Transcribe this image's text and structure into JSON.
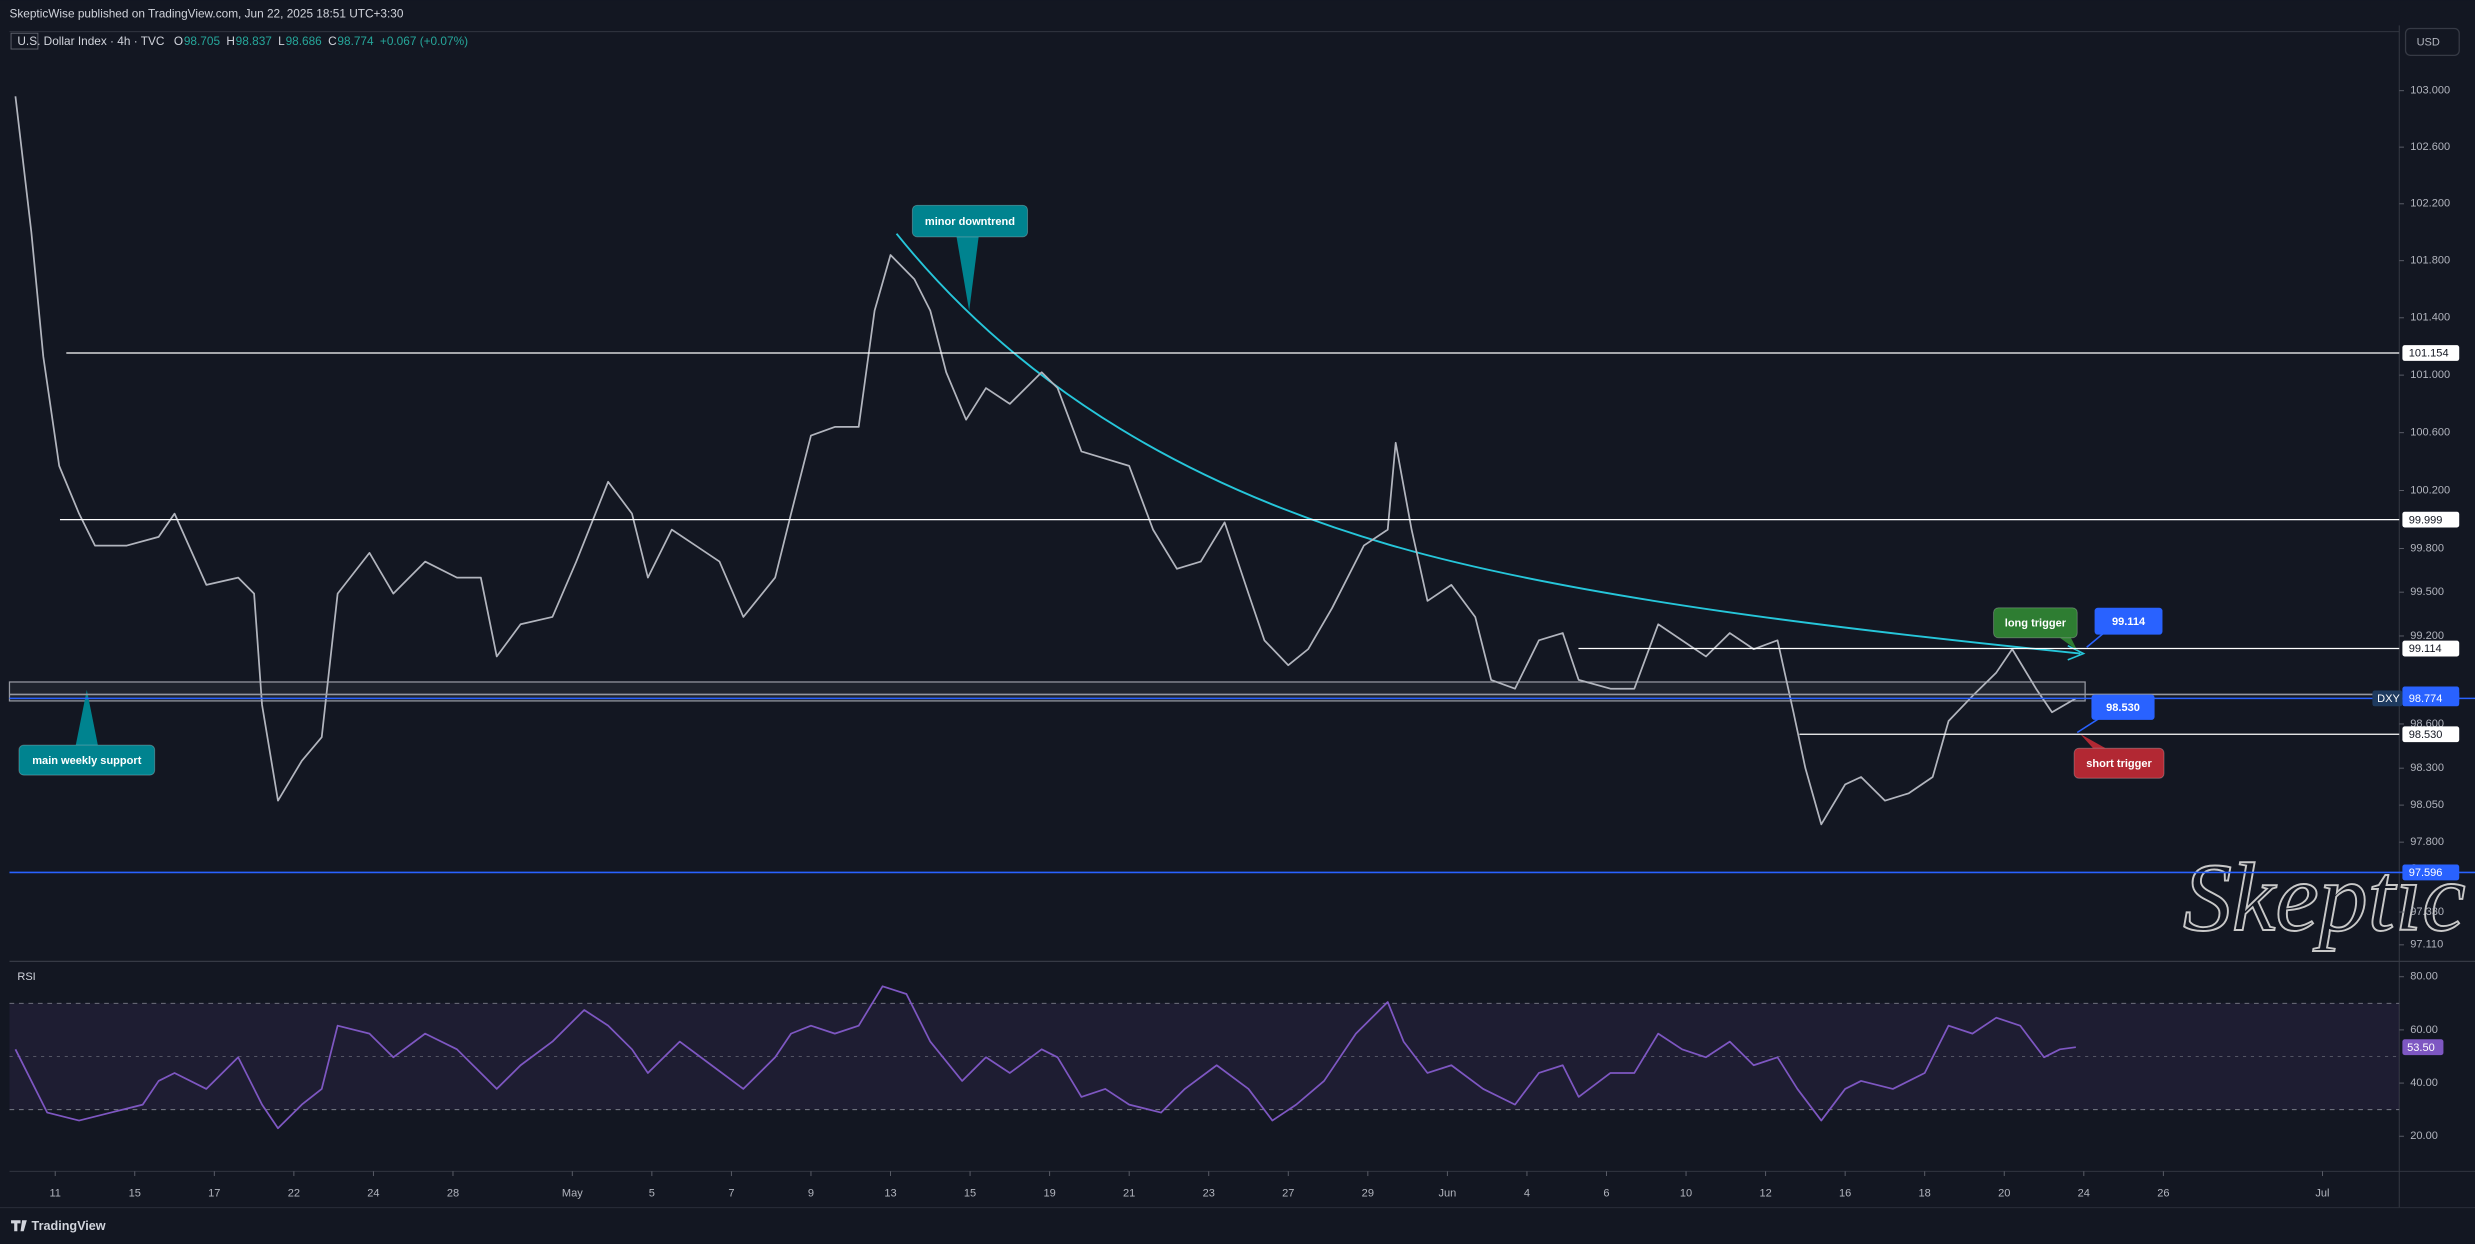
{
  "header": {
    "publisher": "SkepticWise published on TradingView.com, Jun 22, 2025 18:51 UTC+3:30",
    "symbol": "U.S. Dollar Index · 4h · TVC",
    "ohlc": [
      {
        "key": "O",
        "value": 98.705
      },
      {
        "key": "H",
        "value": 98.837
      },
      {
        "key": "L",
        "value": 98.686
      },
      {
        "key": "C",
        "value": 98.774
      }
    ],
    "change": "+0.067 (+0.07%)",
    "currency": "USD",
    "footer": "TradingView"
  },
  "signature": "Skeptic",
  "chart_data": [
    {
      "type": "line",
      "log_scale": true,
      "grid": false,
      "x": [
        -1.0,
        -0.6,
        -0.3,
        0.1,
        0.6,
        1.0,
        1.8,
        2.6,
        3.0,
        3.8,
        4.6,
        5.0,
        5.2,
        5.6,
        6.2,
        6.7,
        7.1,
        7.9,
        8.5,
        9.3,
        10.1,
        10.7,
        11.1,
        11.7,
        12.5,
        13.1,
        13.9,
        14.5,
        14.9,
        15.5,
        16.1,
        16.7,
        17.3,
        18.1,
        18.5,
        19.0,
        19.6,
        20.2,
        20.6,
        21.0,
        21.6,
        22.0,
        22.4,
        22.9,
        23.4,
        24.0,
        24.8,
        25.2,
        25.8,
        26.4,
        27.0,
        27.6,
        28.2,
        28.8,
        29.4,
        30.0,
        30.4,
        31.0,
        31.5,
        32.1,
        32.9,
        33.5,
        33.7,
        34.1,
        34.5,
        35.1,
        35.7,
        36.1,
        36.7,
        37.3,
        37.9,
        38.3,
        39.1,
        39.7,
        40.3,
        40.9,
        41.5,
        42.1,
        42.7,
        43.3,
        43.7,
        44.0,
        44.4,
        45.0,
        45.4,
        46.0,
        46.6,
        47.2,
        47.6,
        48.2,
        48.8,
        49.2,
        49.8,
        50.2,
        50.8
      ],
      "series": [
        {
          "color": "#b2b5be",
          "values": [
            102.96,
            102.0,
            101.13,
            100.37,
            100.04,
            99.82,
            99.82,
            99.88,
            100.04,
            99.55,
            99.6,
            99.49,
            98.73,
            98.08,
            98.35,
            98.51,
            99.49,
            99.77,
            99.49,
            99.71,
            99.6,
            99.6,
            99.06,
            99.28,
            99.33,
            99.71,
            100.26,
            100.04,
            99.6,
            99.93,
            99.82,
            99.71,
            99.33,
            99.6,
            100.04,
            100.58,
            100.64,
            100.64,
            101.45,
            101.84,
            101.67,
            101.45,
            101.02,
            100.69,
            100.91,
            100.8,
            101.02,
            100.91,
            100.47,
            100.42,
            100.37,
            99.93,
            99.66,
            99.71,
            99.98,
            99.49,
            99.17,
            99.0,
            99.11,
            99.39,
            99.82,
            99.93,
            100.53,
            99.93,
            99.44,
            99.55,
            99.33,
            98.9,
            98.84,
            99.17,
            99.22,
            98.9,
            98.84,
            98.84,
            99.28,
            99.17,
            99.06,
            99.22,
            99.11,
            99.17,
            98.68,
            98.3,
            97.92,
            98.19,
            98.24,
            98.08,
            98.13,
            98.24,
            98.62,
            98.79,
            98.95,
            99.11,
            98.84,
            98.68,
            98.774
          ]
        }
      ],
      "xlim": [
        -1.15,
        58.93
      ],
      "ylim": [
        97.01,
        103.42
      ],
      "yticks": [
        {
          "value": 103,
          "label": "103.000"
        },
        {
          "value": 102.6,
          "label": "102.600"
        },
        {
          "value": 102.2,
          "label": "102.200"
        },
        {
          "value": 101.8,
          "label": "101.800"
        },
        {
          "value": 101.4,
          "label": "101.400"
        },
        {
          "value": 101,
          "label": "101.000"
        },
        {
          "value": 100.6,
          "label": "100.600"
        },
        {
          "value": 100.2,
          "label": "100.200"
        },
        {
          "value": 99.8,
          "label": "99.800"
        },
        {
          "value": 99.5,
          "label": "99.500"
        },
        {
          "value": 99.2,
          "label": "99.200"
        },
        {
          "value": 98.6,
          "label": "98.600"
        },
        {
          "value": 98.3,
          "label": "98.300"
        },
        {
          "value": 98.05,
          "label": "98.050"
        },
        {
          "value": 97.8,
          "label": "97.800"
        },
        {
          "value": 97.33,
          "label": "97.330"
        },
        {
          "value": 97.11,
          "label": "97.110"
        }
      ],
      "levels": [
        {
          "value": 101.154,
          "label": "101.154",
          "color": "#ffffff"
        },
        {
          "value": 99.999,
          "label": "99.999",
          "color": "#ffffff"
        },
        {
          "value": 99.114,
          "label": "99.114",
          "color": "#ffffff"
        },
        {
          "value": 98.801,
          "label": "98.801",
          "color": "#2962ff"
        },
        {
          "value": 98.774,
          "label": "98.774",
          "color": "#2962ff",
          "tag": "DXY"
        },
        {
          "value": 98.53,
          "label": "98.530",
          "color": "#ffffff"
        },
        {
          "value": 97.596,
          "label": "97.596",
          "color": "#2962ff"
        }
      ],
      "annotations": [
        "minor downtrend",
        "main weekly support",
        "long trigger",
        "short trigger"
      ]
    },
    {
      "type": "line",
      "title": "RSI",
      "x": [
        -1.0,
        -0.2,
        0.6,
        1.4,
        2.2,
        2.6,
        3.0,
        3.8,
        4.6,
        5.2,
        5.6,
        6.2,
        6.7,
        7.1,
        7.9,
        8.5,
        9.3,
        10.1,
        10.7,
        11.1,
        11.7,
        12.5,
        13.3,
        13.9,
        14.5,
        14.9,
        15.7,
        16.5,
        17.3,
        18.1,
        18.5,
        19.0,
        19.6,
        20.2,
        20.8,
        21.4,
        22.0,
        22.8,
        23.4,
        24.0,
        24.8,
        25.2,
        25.8,
        26.4,
        27.0,
        27.8,
        28.4,
        29.2,
        30.0,
        30.6,
        31.2,
        31.9,
        32.7,
        33.5,
        33.9,
        34.5,
        35.1,
        35.9,
        36.7,
        37.3,
        37.9,
        38.3,
        39.1,
        39.7,
        40.3,
        40.9,
        41.5,
        42.1,
        42.7,
        43.3,
        43.8,
        44.4,
        45.0,
        45.4,
        46.2,
        47.0,
        47.6,
        48.2,
        48.8,
        49.4,
        50.0,
        50.4,
        50.8
      ],
      "series": [
        {
          "color": "#7e57c2",
          "values": [
            52.7,
            28.9,
            25.9,
            28.9,
            31.9,
            40.8,
            43.8,
            37.8,
            49.7,
            31.9,
            23.0,
            31.9,
            37.8,
            61.6,
            58.6,
            49.7,
            58.6,
            52.7,
            43.8,
            37.8,
            46.7,
            55.6,
            67.5,
            61.6,
            52.7,
            43.8,
            55.6,
            46.7,
            37.8,
            49.7,
            58.6,
            61.6,
            58.6,
            61.6,
            76.4,
            73.5,
            55.6,
            40.8,
            49.7,
            43.8,
            52.7,
            49.7,
            34.8,
            37.8,
            31.9,
            28.9,
            37.8,
            46.7,
            37.8,
            25.9,
            31.9,
            40.8,
            58.6,
            70.5,
            55.6,
            43.8,
            46.7,
            37.8,
            31.9,
            43.8,
            46.7,
            34.8,
            43.8,
            43.8,
            58.6,
            52.7,
            49.7,
            55.6,
            46.7,
            49.7,
            37.8,
            25.9,
            37.8,
            40.8,
            37.8,
            43.8,
            61.6,
            58.6,
            64.6,
            61.6,
            49.7,
            52.7,
            53.5
          ]
        }
      ],
      "xlim": [
        -1.15,
        58.93
      ],
      "ylim": [
        8,
        84
      ],
      "yticks": [
        {
          "value": 80,
          "label": "80.00"
        },
        {
          "value": 60,
          "label": "60.00"
        },
        {
          "value": 40,
          "label": "40.00"
        },
        {
          "value": 20,
          "label": "20.00"
        }
      ],
      "bands": [
        30,
        70
      ],
      "midline": 50,
      "last_label": {
        "value": 53.5,
        "label": "53.50"
      },
      "xticks": [
        {
          "value": 0,
          "label": "11"
        },
        {
          "value": 2,
          "label": "15"
        },
        {
          "value": 4,
          "label": "17"
        },
        {
          "value": 6,
          "label": "22"
        },
        {
          "value": 8,
          "label": "24"
        },
        {
          "value": 10,
          "label": "28"
        },
        {
          "value": 13,
          "label": "May"
        },
        {
          "value": 15,
          "label": "5"
        },
        {
          "value": 17,
          "label": "7"
        },
        {
          "value": 19,
          "label": "9"
        },
        {
          "value": 21,
          "label": "13"
        },
        {
          "value": 23,
          "label": "15"
        },
        {
          "value": 25,
          "label": "19"
        },
        {
          "value": 27,
          "label": "21"
        },
        {
          "value": 29,
          "label": "23"
        },
        {
          "value": 31,
          "label": "27"
        },
        {
          "value": 33,
          "label": "29"
        },
        {
          "value": 35,
          "label": "Jun"
        },
        {
          "value": 37,
          "label": "4"
        },
        {
          "value": 39,
          "label": "6"
        },
        {
          "value": 41,
          "label": "10"
        },
        {
          "value": 43,
          "label": "12"
        },
        {
          "value": 45,
          "label": "16"
        },
        {
          "value": 47,
          "label": "18"
        },
        {
          "value": 49,
          "label": "20"
        },
        {
          "value": 51,
          "label": "24"
        },
        {
          "value": 53,
          "label": "26"
        },
        {
          "value": 57,
          "label": "Jul"
        }
      ]
    }
  ]
}
